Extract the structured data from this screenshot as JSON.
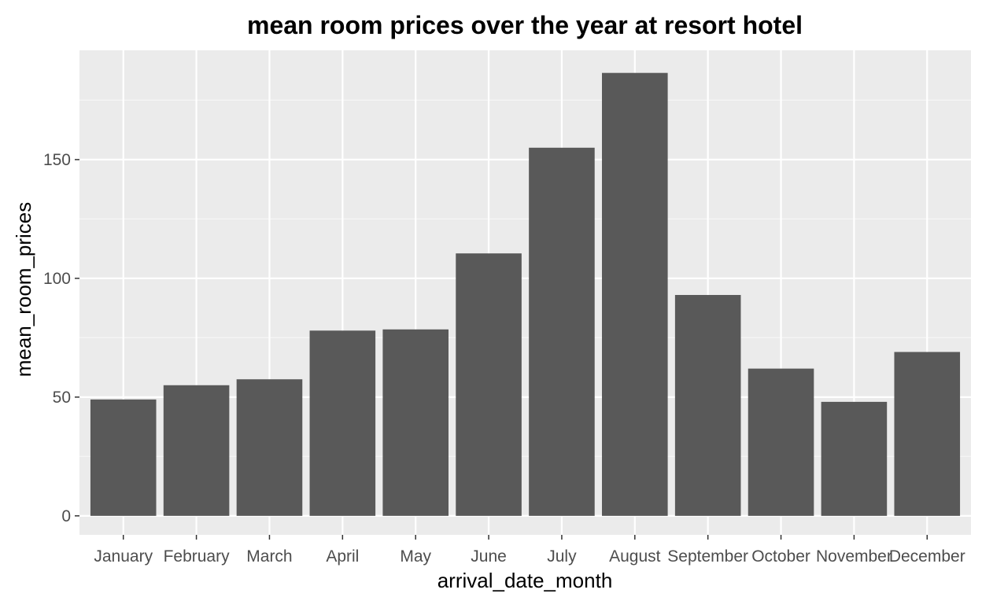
{
  "chart_data": {
    "type": "bar",
    "title": "mean room prices over the year at resort hotel",
    "xlabel": "arrival_date_month",
    "ylabel": "mean_room_prices",
    "categories": [
      "January",
      "February",
      "March",
      "April",
      "May",
      "June",
      "July",
      "August",
      "September",
      "October",
      "November",
      "December"
    ],
    "values": [
      49,
      55,
      57.5,
      78,
      78.5,
      110.5,
      155,
      186.5,
      93,
      62,
      48,
      69
    ],
    "ylim": [
      -8,
      196
    ],
    "yticks": [
      0,
      50,
      100,
      150
    ],
    "ytick_labels": [
      "0",
      "50",
      "100",
      "150"
    ],
    "grid": true,
    "legend": "none",
    "colors": {
      "bar": "#595959",
      "panel": "#ebebeb",
      "grid_major": "#ffffff",
      "grid_minor": "#f5f5f5",
      "tick_text": "#4d4d4d",
      "axis_title": "#000000",
      "tick_mark": "#333333"
    }
  }
}
